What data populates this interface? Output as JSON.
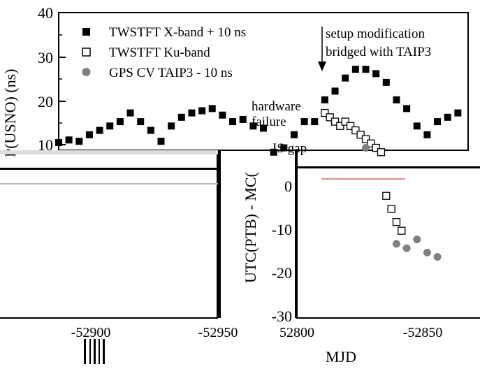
{
  "chart_data": [
    {
      "type": "scatter",
      "title": "",
      "ylabel": "P(USNO) (ns)",
      "xlabel": "",
      "ylim": [
        -30,
        40
      ],
      "xlim": [
        52785,
        52865
      ],
      "y_ticks": [
        "40",
        "30",
        "20",
        "10"
      ],
      "legend_placement": "top-left",
      "series": [
        {
          "name": "TWSTFT X-band + 10 ns",
          "marker": "filled-square",
          "color": "#000000",
          "x": [
            52785,
            52787,
            52789,
            52791,
            52793,
            52795,
            52797,
            52799,
            52801,
            52803,
            52805,
            52807,
            52809,
            52811,
            52813,
            52815,
            52817,
            52819,
            52821,
            52823,
            52825,
            52827,
            52829,
            52831,
            52833,
            52835,
            52837,
            52839,
            52841,
            52843,
            52845,
            52847,
            52849,
            52851,
            52853,
            52855,
            52857,
            52859,
            52861,
            52863
          ],
          "y": [
            10.2,
            10.8,
            10.5,
            12,
            13,
            14,
            15,
            17,
            15,
            13,
            10.5,
            14,
            16,
            17,
            17.5,
            18,
            16.5,
            15,
            15.5,
            14,
            13.5,
            8,
            9,
            12,
            15,
            15,
            20,
            22,
            25,
            27,
            27,
            26,
            24,
            20,
            18,
            14,
            12,
            15,
            16,
            17
          ]
        },
        {
          "name": "TWSTFT Ku-band",
          "marker": "open-square",
          "color": "#000000",
          "x": [
            52837,
            52838,
            52839,
            52840,
            52841,
            52842,
            52843,
            52844,
            52845,
            52846,
            52847,
            52848,
            52849,
            52850,
            52851,
            52852
          ],
          "y": [
            17,
            16,
            15,
            14,
            15,
            14,
            13,
            12,
            11,
            10,
            9,
            8,
            -2,
            -5,
            -8,
            -10
          ]
        },
        {
          "name": "GPS CV TAIP3 - 10 ns",
          "marker": "filled-circle",
          "color": "#808080",
          "x": [
            52845,
            52851,
            52853,
            52855,
            52857,
            52859
          ],
          "y": [
            9,
            -13,
            -14,
            -12,
            -15,
            -16
          ]
        }
      ],
      "annotations": [
        {
          "text": "setup modification",
          "x": 52835,
          "y": 32
        },
        {
          "text": "bridged with TAIP3",
          "x": 52835,
          "y": 28
        },
        {
          "text": "hardware",
          "x": 52822,
          "y": 18
        },
        {
          "text": "failure",
          "x": 52822,
          "y": 14
        },
        {
          "text": "IS gap",
          "x": 52833,
          "y": 8
        }
      ]
    },
    {
      "type": "scatter",
      "title": "",
      "ylabel": "UTC(PTB) - MC(",
      "xlabel": "MJD",
      "ylim": [
        -30,
        5
      ],
      "y_ticks": [
        "0",
        "-10",
        "-20",
        "-30"
      ],
      "x_ticks": [
        "-52900",
        "-52950",
        "52800",
        "-52850"
      ]
    }
  ]
}
